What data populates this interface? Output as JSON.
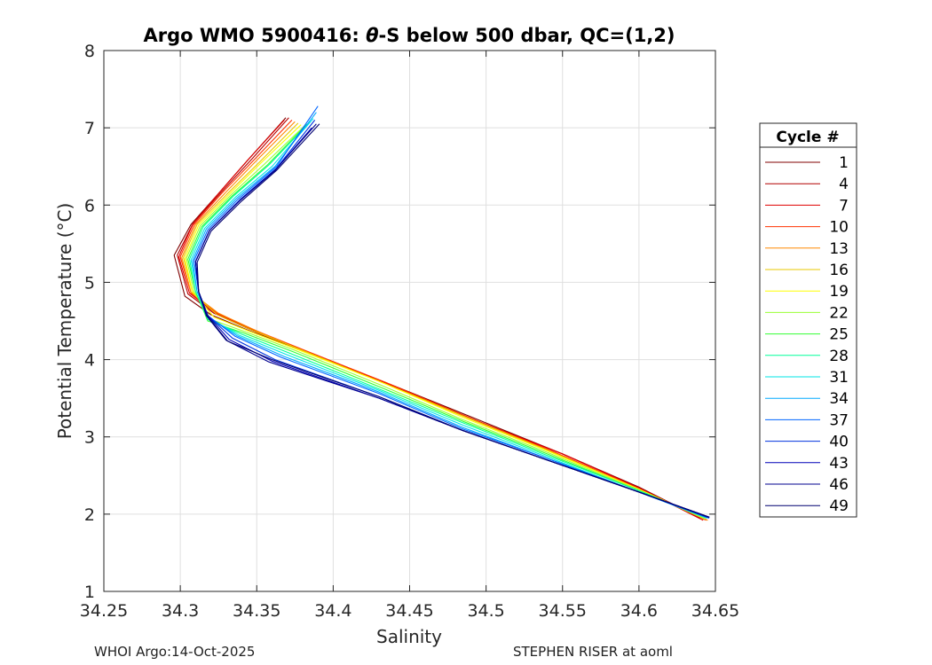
{
  "chart_data": {
    "type": "line",
    "title_prefix": "Argo WMO 5900416: ",
    "title_theta": "θ",
    "title_suffix": "-S below 500 dbar,  QC=(1,2)",
    "xlabel": "Salinity",
    "ylabel": "Potential Temperature (°C)",
    "xlim": [
      34.25,
      34.65
    ],
    "ylim": [
      1,
      8
    ],
    "xticks": [
      34.25,
      34.3,
      34.35,
      34.4,
      34.45,
      34.5,
      34.55,
      34.6,
      34.65
    ],
    "xtick_labels": [
      "34.25",
      "34.3",
      "34.35",
      "34.4",
      "34.45",
      "34.5",
      "34.55",
      "34.6",
      "34.65"
    ],
    "yticks": [
      1,
      2,
      3,
      4,
      5,
      6,
      7,
      8
    ],
    "ytick_labels": [
      "1",
      "2",
      "3",
      "4",
      "5",
      "6",
      "7",
      "8"
    ],
    "grid": true,
    "legend_title": "Cycle #",
    "legend_position": "right",
    "series": [
      {
        "name": "1",
        "color": "#800000",
        "points": [
          [
            34.369,
            7.13
          ],
          [
            34.345,
            6.6
          ],
          [
            34.325,
            6.15
          ],
          [
            34.307,
            5.75
          ],
          [
            34.296,
            5.35
          ],
          [
            34.303,
            4.82
          ],
          [
            34.32,
            4.58
          ],
          [
            34.348,
            4.35
          ],
          [
            34.39,
            4.05
          ],
          [
            34.445,
            3.62
          ],
          [
            34.5,
            3.18
          ],
          [
            34.55,
            2.78
          ],
          [
            34.6,
            2.35
          ],
          [
            34.64,
            1.95
          ]
        ]
      },
      {
        "name": "4",
        "color": "#b40000",
        "points": [
          [
            34.371,
            7.13
          ],
          [
            34.347,
            6.6
          ],
          [
            34.326,
            6.15
          ],
          [
            34.308,
            5.75
          ],
          [
            34.298,
            5.35
          ],
          [
            34.305,
            4.85
          ],
          [
            34.322,
            4.6
          ],
          [
            34.35,
            4.35
          ],
          [
            34.388,
            4.06
          ],
          [
            34.44,
            3.65
          ],
          [
            34.495,
            3.2
          ],
          [
            34.55,
            2.78
          ],
          [
            34.6,
            2.34
          ],
          [
            34.643,
            1.93
          ]
        ]
      },
      {
        "name": "7",
        "color": "#e00000",
        "points": [
          [
            34.368,
            7.1
          ],
          [
            34.344,
            6.58
          ],
          [
            34.325,
            6.15
          ],
          [
            34.308,
            5.75
          ],
          [
            34.299,
            5.33
          ],
          [
            34.306,
            4.86
          ],
          [
            34.323,
            4.6
          ],
          [
            34.35,
            4.36
          ],
          [
            34.386,
            4.08
          ],
          [
            34.44,
            3.65
          ],
          [
            34.495,
            3.2
          ],
          [
            34.55,
            2.78
          ],
          [
            34.6,
            2.34
          ],
          [
            34.642,
            1.92
          ]
        ]
      },
      {
        "name": "10",
        "color": "#ff3300",
        "points": [
          [
            34.373,
            7.1
          ],
          [
            34.348,
            6.58
          ],
          [
            34.327,
            6.15
          ],
          [
            34.309,
            5.75
          ],
          [
            34.3,
            5.33
          ],
          [
            34.307,
            4.86
          ],
          [
            34.324,
            4.6
          ],
          [
            34.35,
            4.37
          ],
          [
            34.384,
            4.1
          ],
          [
            34.435,
            3.7
          ],
          [
            34.49,
            3.24
          ],
          [
            34.545,
            2.8
          ],
          [
            34.6,
            2.33
          ],
          [
            34.644,
            1.92
          ]
        ]
      },
      {
        "name": "13",
        "color": "#ff8800",
        "points": [
          [
            34.375,
            7.08
          ],
          [
            34.35,
            6.58
          ],
          [
            34.329,
            6.15
          ],
          [
            34.31,
            5.75
          ],
          [
            34.301,
            5.32
          ],
          [
            34.307,
            4.87
          ],
          [
            34.325,
            4.6
          ],
          [
            34.35,
            4.37
          ],
          [
            34.382,
            4.1
          ],
          [
            34.43,
            3.72
          ],
          [
            34.485,
            3.27
          ],
          [
            34.54,
            2.83
          ],
          [
            34.598,
            2.34
          ],
          [
            34.645,
            1.92
          ]
        ]
      },
      {
        "name": "16",
        "color": "#e8c800",
        "points": [
          [
            34.377,
            7.06
          ],
          [
            34.352,
            6.56
          ],
          [
            34.331,
            6.15
          ],
          [
            34.311,
            5.75
          ],
          [
            34.302,
            5.32
          ],
          [
            34.308,
            4.87
          ],
          [
            34.324,
            4.58
          ],
          [
            34.348,
            4.37
          ],
          [
            34.38,
            4.12
          ],
          [
            34.43,
            3.72
          ],
          [
            34.485,
            3.27
          ],
          [
            34.54,
            2.83
          ],
          [
            34.598,
            2.34
          ],
          [
            34.644,
            1.93
          ]
        ]
      },
      {
        "name": "19",
        "color": "#ffff00",
        "points": [
          [
            34.379,
            7.04
          ],
          [
            34.353,
            6.55
          ],
          [
            34.332,
            6.14
          ],
          [
            34.312,
            5.74
          ],
          [
            34.303,
            5.31
          ],
          [
            34.308,
            4.88
          ],
          [
            34.322,
            4.55
          ],
          [
            34.346,
            4.36
          ],
          [
            34.378,
            4.12
          ],
          [
            34.43,
            3.72
          ],
          [
            34.485,
            3.25
          ],
          [
            34.54,
            2.82
          ],
          [
            34.598,
            2.34
          ],
          [
            34.643,
            1.94
          ]
        ]
      },
      {
        "name": "22",
        "color": "#99ff33",
        "points": [
          [
            34.381,
            7.02
          ],
          [
            34.355,
            6.53
          ],
          [
            34.333,
            6.13
          ],
          [
            34.313,
            5.73
          ],
          [
            34.304,
            5.31
          ],
          [
            34.309,
            4.88
          ],
          [
            34.32,
            4.52
          ],
          [
            34.344,
            4.35
          ],
          [
            34.375,
            4.12
          ],
          [
            34.43,
            3.68
          ],
          [
            34.485,
            3.22
          ],
          [
            34.54,
            2.8
          ],
          [
            34.598,
            2.33
          ],
          [
            34.643,
            1.94
          ]
        ]
      },
      {
        "name": "25",
        "color": "#33ff33",
        "points": [
          [
            34.383,
            7.05
          ],
          [
            34.357,
            6.52
          ],
          [
            34.334,
            6.12
          ],
          [
            34.314,
            5.72
          ],
          [
            34.305,
            5.3
          ],
          [
            34.31,
            4.88
          ],
          [
            34.318,
            4.5
          ],
          [
            34.342,
            4.34
          ],
          [
            34.374,
            4.1
          ],
          [
            34.43,
            3.65
          ],
          [
            34.485,
            3.2
          ],
          [
            34.54,
            2.78
          ],
          [
            34.598,
            2.32
          ],
          [
            34.644,
            1.95
          ]
        ]
      },
      {
        "name": "28",
        "color": "#00ff99",
        "points": [
          [
            34.385,
            7.08
          ],
          [
            34.358,
            6.52
          ],
          [
            34.335,
            6.12
          ],
          [
            34.315,
            5.72
          ],
          [
            34.306,
            5.3
          ],
          [
            34.31,
            4.88
          ],
          [
            34.318,
            4.52
          ],
          [
            34.34,
            4.33
          ],
          [
            34.372,
            4.08
          ],
          [
            34.43,
            3.62
          ],
          [
            34.485,
            3.18
          ],
          [
            34.54,
            2.76
          ],
          [
            34.598,
            2.32
          ],
          [
            34.644,
            1.95
          ]
        ]
      },
      {
        "name": "31",
        "color": "#00e5e5",
        "points": [
          [
            34.387,
            7.12
          ],
          [
            34.36,
            6.5
          ],
          [
            34.336,
            6.1
          ],
          [
            34.316,
            5.7
          ],
          [
            34.307,
            5.29
          ],
          [
            34.311,
            4.88
          ],
          [
            34.318,
            4.55
          ],
          [
            34.338,
            4.32
          ],
          [
            34.37,
            4.06
          ],
          [
            34.43,
            3.6
          ],
          [
            34.485,
            3.15
          ],
          [
            34.54,
            2.74
          ],
          [
            34.598,
            2.3
          ],
          [
            34.645,
            1.95
          ]
        ]
      },
      {
        "name": "34",
        "color": "#00aaff",
        "points": [
          [
            34.389,
            7.2
          ],
          [
            34.362,
            6.5
          ],
          [
            34.337,
            6.09
          ],
          [
            34.317,
            5.69
          ],
          [
            34.308,
            5.28
          ],
          [
            34.311,
            4.88
          ],
          [
            34.318,
            4.56
          ],
          [
            34.337,
            4.31
          ],
          [
            34.368,
            4.04
          ],
          [
            34.43,
            3.58
          ],
          [
            34.485,
            3.12
          ],
          [
            34.54,
            2.72
          ],
          [
            34.598,
            2.3
          ],
          [
            34.645,
            1.95
          ]
        ]
      },
      {
        "name": "37",
        "color": "#0066ff",
        "points": [
          [
            34.39,
            7.28
          ],
          [
            34.363,
            6.5
          ],
          [
            34.338,
            6.08
          ],
          [
            34.318,
            5.68
          ],
          [
            34.309,
            5.28
          ],
          [
            34.312,
            4.88
          ],
          [
            34.318,
            4.57
          ],
          [
            34.336,
            4.3
          ],
          [
            34.366,
            4.03
          ],
          [
            34.43,
            3.56
          ],
          [
            34.485,
            3.1
          ],
          [
            34.54,
            2.72
          ],
          [
            34.598,
            2.3
          ],
          [
            34.646,
            1.95
          ]
        ]
      },
      {
        "name": "40",
        "color": "#0033dd",
        "points": [
          [
            34.388,
            7.1
          ],
          [
            34.363,
            6.48
          ],
          [
            34.339,
            6.07
          ],
          [
            34.319,
            5.67
          ],
          [
            34.31,
            5.27
          ],
          [
            34.312,
            4.88
          ],
          [
            34.318,
            4.57
          ],
          [
            34.334,
            4.28
          ],
          [
            34.362,
            4.0
          ],
          [
            34.43,
            3.52
          ],
          [
            34.485,
            3.08
          ],
          [
            34.54,
            2.7
          ],
          [
            34.598,
            2.3
          ],
          [
            34.646,
            1.95
          ]
        ]
      },
      {
        "name": "43",
        "color": "#0000b8",
        "points": [
          [
            34.386,
            7.0
          ],
          [
            34.362,
            6.45
          ],
          [
            34.339,
            6.06
          ],
          [
            34.319,
            5.67
          ],
          [
            34.31,
            5.27
          ],
          [
            34.312,
            4.88
          ],
          [
            34.318,
            4.57
          ],
          [
            34.332,
            4.26
          ],
          [
            34.36,
            3.98
          ],
          [
            34.43,
            3.5
          ],
          [
            34.485,
            3.08
          ],
          [
            34.54,
            2.7
          ],
          [
            34.598,
            2.3
          ],
          [
            34.646,
            1.96
          ]
        ]
      },
      {
        "name": "46",
        "color": "#00008f",
        "points": [
          [
            34.389,
            7.05
          ],
          [
            34.362,
            6.45
          ],
          [
            34.339,
            6.06
          ],
          [
            34.319,
            5.67
          ],
          [
            34.31,
            5.27
          ],
          [
            34.312,
            4.88
          ],
          [
            34.317,
            4.57
          ],
          [
            34.33,
            4.25
          ],
          [
            34.358,
            3.97
          ],
          [
            34.43,
            3.5
          ],
          [
            34.485,
            3.08
          ],
          [
            34.54,
            2.7
          ],
          [
            34.598,
            2.3
          ],
          [
            34.646,
            1.96
          ]
        ]
      },
      {
        "name": "49",
        "color": "#000070",
        "points": [
          [
            34.391,
            7.05
          ],
          [
            34.363,
            6.45
          ],
          [
            34.34,
            6.05
          ],
          [
            34.32,
            5.66
          ],
          [
            34.311,
            5.26
          ],
          [
            34.312,
            4.88
          ],
          [
            34.317,
            4.58
          ],
          [
            34.331,
            4.24
          ],
          [
            34.36,
            4.0
          ],
          [
            34.43,
            3.52
          ],
          [
            34.485,
            3.08
          ],
          [
            34.54,
            2.7
          ],
          [
            34.598,
            2.3
          ],
          [
            34.646,
            1.96
          ]
        ]
      }
    ]
  },
  "footer": {
    "left": "WHOI Argo:14-Oct-2025",
    "right": "STEPHEN RISER at aoml"
  }
}
